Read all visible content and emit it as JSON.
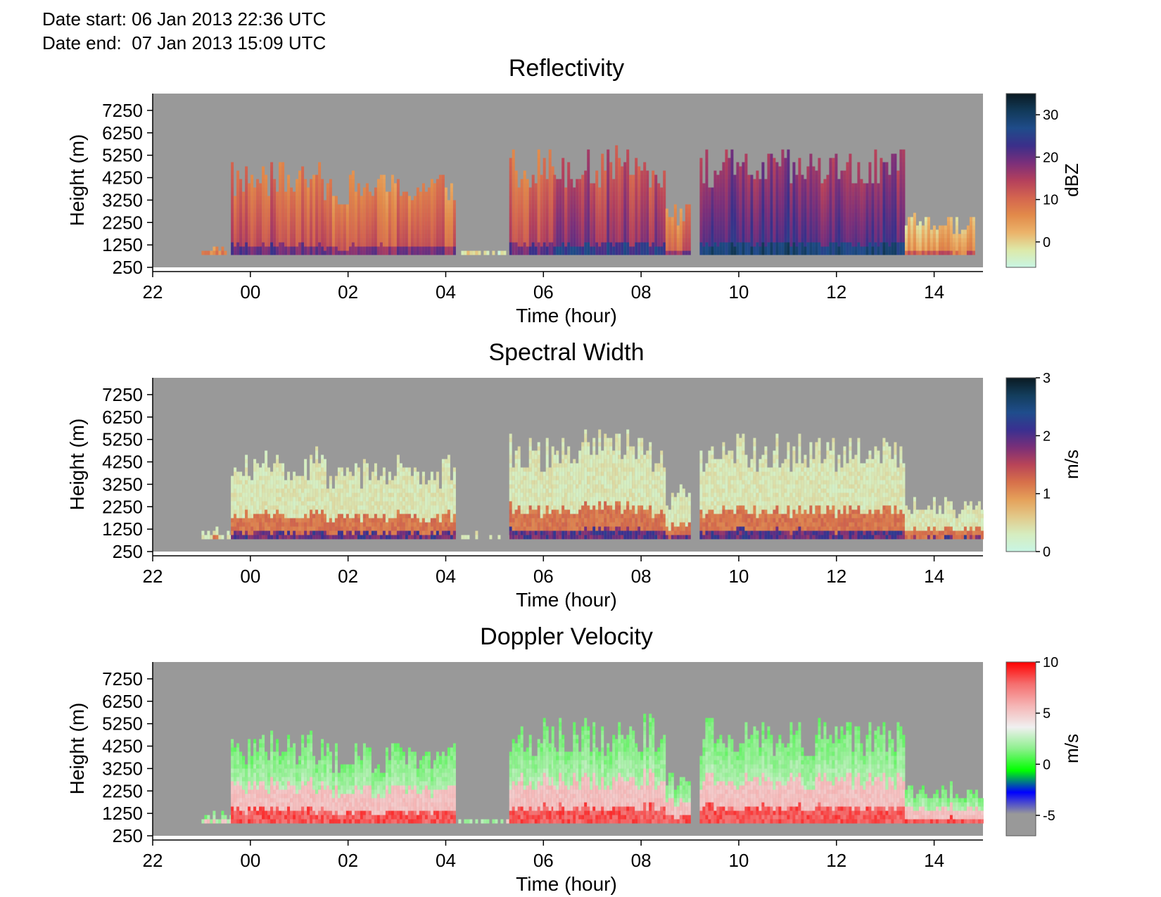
{
  "header": {
    "date_start_label": "Date start: 06 Jan 2013 22:36 UTC",
    "date_end_label": "Date end:  07 Jan 2013 15:09 UTC"
  },
  "chart_data": [
    {
      "type": "heatmap",
      "title": "Reflectivity",
      "xlabel": "Time (hour)",
      "ylabel": "Height (m)",
      "x_ticks": [
        "22",
        "00",
        "02",
        "04",
        "06",
        "08",
        "10",
        "12",
        "14"
      ],
      "x_tick_hours": [
        22,
        24,
        26,
        28,
        30,
        32,
        34,
        36,
        38
      ],
      "xlim": [
        22,
        39
      ],
      "y_ticks": [
        250,
        1250,
        2250,
        3250,
        4250,
        5250,
        6250,
        7250
      ],
      "ylim": [
        250,
        8000
      ],
      "colorbar": {
        "label": "dBZ",
        "ticks": [
          0,
          10,
          20,
          30
        ],
        "range": [
          -6,
          35
        ],
        "colors": [
          "#c8f5e4",
          "#dde9a9",
          "#ebb36a",
          "#e28a4a",
          "#d4654f",
          "#b4405c",
          "#7b2f7a",
          "#3b2f8a",
          "#1f4c8a",
          "#123a5a",
          "#0a1a22"
        ]
      },
      "segments": [
        {
          "start": 23.0,
          "end": 23.5,
          "top": 1300,
          "intensity": 0.4
        },
        {
          "start": 23.6,
          "end": 25.5,
          "top": 4600,
          "intensity": 0.5
        },
        {
          "start": 25.5,
          "end": 28.2,
          "top": 4200,
          "intensity": 0.45
        },
        {
          "start": 28.2,
          "end": 29.5,
          "top": 1100,
          "intensity": 0.2
        },
        {
          "start": 29.3,
          "end": 30.2,
          "top": 5200,
          "intensity": 0.5
        },
        {
          "start": 30.2,
          "end": 32.5,
          "top": 5200,
          "intensity": 0.6
        },
        {
          "start": 32.5,
          "end": 33.0,
          "top": 3000,
          "intensity": 0.45
        },
        {
          "start": 33.2,
          "end": 37.4,
          "top": 5100,
          "intensity": 0.7
        },
        {
          "start": 37.4,
          "end": 38.8,
          "top": 2500,
          "intensity": 0.3
        }
      ]
    },
    {
      "type": "heatmap",
      "title": "Spectral Width",
      "xlabel": "Time (hour)",
      "ylabel": "Height (m)",
      "x_ticks": [
        "22",
        "00",
        "02",
        "04",
        "06",
        "08",
        "10",
        "12",
        "14"
      ],
      "x_tick_hours": [
        22,
        24,
        26,
        28,
        30,
        32,
        34,
        36,
        38
      ],
      "xlim": [
        22,
        39
      ],
      "y_ticks": [
        250,
        1250,
        2250,
        3250,
        4250,
        5250,
        6250,
        7250
      ],
      "ylim": [
        250,
        8000
      ],
      "colorbar": {
        "label": "m/s",
        "ticks": [
          0,
          1,
          2,
          3
        ],
        "range": [
          0,
          3
        ],
        "colors": [
          "#c8f5e4",
          "#d6edbf",
          "#e2c98a",
          "#e5a15a",
          "#d7704a",
          "#b84458",
          "#7a2f78",
          "#3a3090",
          "#1f4d8c",
          "#133d5c",
          "#0a1a22"
        ]
      },
      "segments": [
        {
          "start": 23.0,
          "end": 23.6,
          "top": 1300,
          "intensity": 0.5
        },
        {
          "start": 23.6,
          "end": 25.5,
          "top": 4600,
          "intensity": 0.3
        },
        {
          "start": 25.5,
          "end": 28.2,
          "top": 4200,
          "intensity": 0.3
        },
        {
          "start": 28.2,
          "end": 29.5,
          "top": 1100,
          "intensity": 0.5
        },
        {
          "start": 29.3,
          "end": 30.2,
          "top": 5200,
          "intensity": 0.3
        },
        {
          "start": 30.2,
          "end": 32.5,
          "top": 5200,
          "intensity": 0.3
        },
        {
          "start": 32.5,
          "end": 33.0,
          "top": 3000,
          "intensity": 0.3
        },
        {
          "start": 33.2,
          "end": 37.4,
          "top": 5100,
          "intensity": 0.3
        },
        {
          "start": 37.4,
          "end": 39.0,
          "top": 2500,
          "intensity": 0.4
        }
      ]
    },
    {
      "type": "heatmap",
      "title": "Doppler Velocity",
      "xlabel": "Time (hour)",
      "ylabel": "Height (m)",
      "x_ticks": [
        "22",
        "00",
        "02",
        "04",
        "06",
        "08",
        "10",
        "12",
        "14"
      ],
      "x_tick_hours": [
        22,
        24,
        26,
        28,
        30,
        32,
        34,
        36,
        38
      ],
      "xlim": [
        22,
        39
      ],
      "y_ticks": [
        250,
        1250,
        2250,
        3250,
        4250,
        5250,
        6250,
        7250
      ],
      "ylim": [
        250,
        8000
      ],
      "colorbar": {
        "label": "m/s",
        "ticks": [
          -5,
          0,
          5,
          10
        ],
        "range": [
          -7,
          10
        ],
        "colors": [
          "#999999",
          "#999999",
          "#0000ff",
          "#00ff00",
          "#8cf08c",
          "#f0f0f0",
          "#f5b4b4",
          "#f56e6e",
          "#ff0000"
        ]
      },
      "segments": [
        {
          "start": 23.0,
          "end": 23.6,
          "top": 1300,
          "intensity": 0.3
        },
        {
          "start": 23.6,
          "end": 25.5,
          "top": 4600,
          "intensity": 0.3
        },
        {
          "start": 25.5,
          "end": 28.2,
          "top": 4200,
          "intensity": 0.3
        },
        {
          "start": 28.2,
          "end": 29.5,
          "top": 1100,
          "intensity": 0.4
        },
        {
          "start": 29.3,
          "end": 30.2,
          "top": 5200,
          "intensity": 0.3
        },
        {
          "start": 30.2,
          "end": 32.5,
          "top": 5200,
          "intensity": 0.3
        },
        {
          "start": 32.5,
          "end": 33.0,
          "top": 3000,
          "intensity": 0.4
        },
        {
          "start": 33.2,
          "end": 37.4,
          "top": 5100,
          "intensity": 0.5
        },
        {
          "start": 37.4,
          "end": 39.0,
          "top": 2500,
          "intensity": 0.3
        }
      ]
    }
  ]
}
